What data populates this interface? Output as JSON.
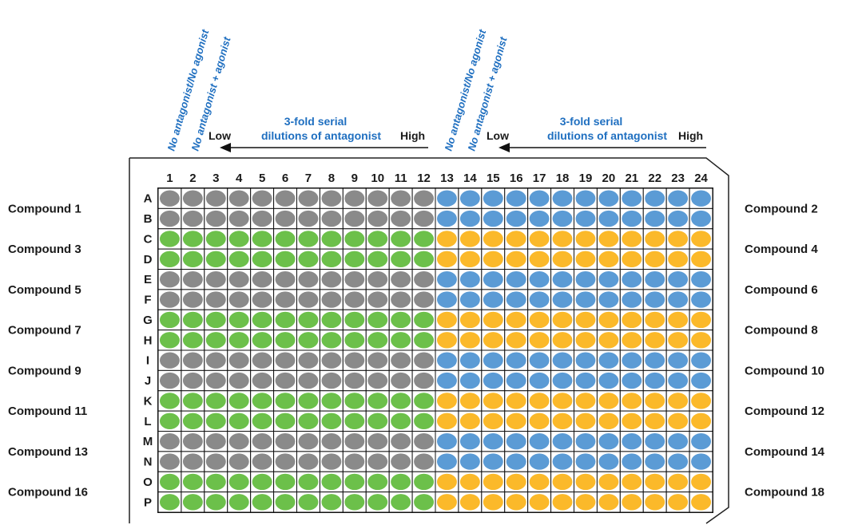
{
  "colors": {
    "gray": "#8a8a8a",
    "green": "#6cc04a",
    "blue": "#5b9bd5",
    "orange": "#fbb92a",
    "annotation_blue": "#1f6fc0",
    "text": "#1a1a1a"
  },
  "annotations": {
    "left": {
      "control_1": "No antagonist/No agonist",
      "control_2": "No antagonist + agonist",
      "low": "Low",
      "high": "High",
      "dilution_line_1": "3-fold serial",
      "dilution_line_2": "dilutions of antagonist"
    },
    "right": {
      "control_1": "No antagonist/No agonist",
      "control_2": "No antagonist + agonist",
      "low": "Low",
      "high": "High",
      "dilution_line_1": "3-fold serial",
      "dilution_line_2": "dilutions of antagonist"
    }
  },
  "plate": {
    "columns": [
      "1",
      "2",
      "3",
      "4",
      "5",
      "6",
      "7",
      "8",
      "9",
      "10",
      "11",
      "12",
      "13",
      "14",
      "15",
      "16",
      "17",
      "18",
      "19",
      "20",
      "21",
      "22",
      "23",
      "24"
    ],
    "rows": [
      "A",
      "B",
      "C",
      "D",
      "E",
      "F",
      "G",
      "H",
      "I",
      "J",
      "K",
      "L",
      "M",
      "N",
      "O",
      "P"
    ],
    "left_half_row_colors": [
      "gray",
      "gray",
      "green",
      "green",
      "gray",
      "gray",
      "green",
      "green",
      "gray",
      "gray",
      "green",
      "green",
      "gray",
      "gray",
      "green",
      "green"
    ],
    "right_half_row_colors": [
      "blue",
      "blue",
      "orange",
      "orange",
      "blue",
      "blue",
      "orange",
      "orange",
      "blue",
      "blue",
      "orange",
      "orange",
      "blue",
      "blue",
      "orange",
      "orange"
    ]
  },
  "compounds_left": [
    "Compound 1",
    "Compound 3",
    "Compound 5",
    "Compound 7",
    "Compound 9",
    "Compound 11",
    "Compound 13",
    "Compound 16"
  ],
  "compounds_right": [
    "Compound 2",
    "Compound 4",
    "Compound 6",
    "Compound 8",
    "Compound 10",
    "Compound 12",
    "Compound 14",
    "Compound 18"
  ]
}
